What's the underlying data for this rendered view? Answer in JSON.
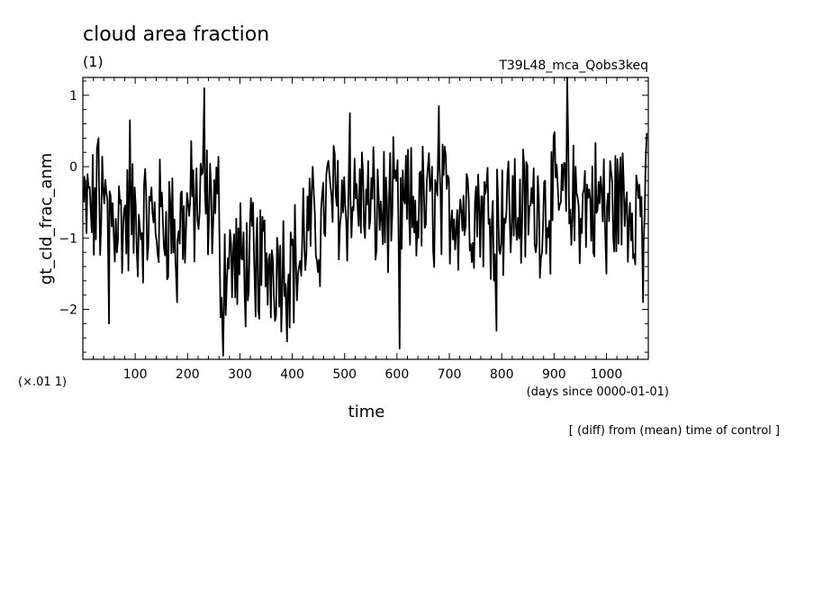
{
  "chart_data": {
    "type": "line",
    "title": "cloud area fraction",
    "subtitle": "(1)",
    "run_label": "T39L48_mca_Qobs3keq",
    "xlabel": "time",
    "xunits": "(days since 0000-01-01)",
    "ylabel": "gt_cld_frac_anm",
    "yscale_label": "(×.01 1)",
    "footnote": "[ (diff) from (mean) time of control ]",
    "xlim": [
      0,
      1080
    ],
    "ylim": [
      -2.7,
      1.25
    ],
    "xticks": [
      100,
      200,
      300,
      400,
      500,
      600,
      700,
      800,
      900,
      1000
    ],
    "xtick_labels": [
      "100",
      "200",
      "300",
      "400",
      "500",
      "600",
      "700",
      "800",
      "900",
      "1000"
    ],
    "yticks": [
      1,
      0,
      -1,
      -2
    ],
    "ytick_labels": [
      "1",
      "0",
      "−1",
      "−2"
    ],
    "line_color": "#000000",
    "key_points": [
      {
        "x": 2,
        "y": -0.5
      },
      {
        "x": 30,
        "y": 0.4
      },
      {
        "x": 50,
        "y": -2.2
      },
      {
        "x": 90,
        "y": 0.65
      },
      {
        "x": 180,
        "y": -1.9
      },
      {
        "x": 232,
        "y": 1.1
      },
      {
        "x": 268,
        "y": -2.65
      },
      {
        "x": 330,
        "y": -2.1
      },
      {
        "x": 390,
        "y": -2.45
      },
      {
        "x": 510,
        "y": 0.75
      },
      {
        "x": 605,
        "y": -2.55
      },
      {
        "x": 680,
        "y": 0.85
      },
      {
        "x": 790,
        "y": -2.3
      },
      {
        "x": 925,
        "y": 1.25
      },
      {
        "x": 1000,
        "y": -1.5
      },
      {
        "x": 1070,
        "y": -1.9
      }
    ],
    "series": [
      {
        "color": "#000000"
      }
    ]
  }
}
